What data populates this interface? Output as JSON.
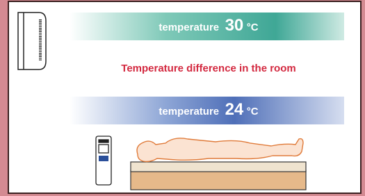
{
  "top_band": {
    "label": "temperature",
    "value": 30,
    "unit": "°C"
  },
  "caption": "Temperature difference in the room",
  "bottom_band": {
    "label": "temperature",
    "value": 24,
    "unit": "°C"
  }
}
